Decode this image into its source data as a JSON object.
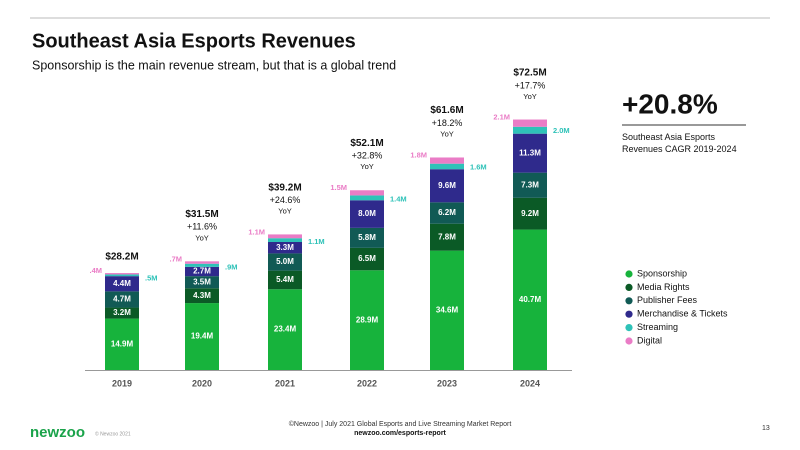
{
  "chart_data": {
    "type": "stacked_bar",
    "title": "Southeast Asia Esports Revenues",
    "subtitle": "Sponsorship is the main revenue stream, but that is a global trend",
    "categories": [
      "2019",
      "2020",
      "2021",
      "2022",
      "2023",
      "2024"
    ],
    "series": [
      {
        "name": "Sponsorship",
        "color": "#17b33c",
        "values": [
          14.9,
          19.4,
          23.4,
          28.9,
          34.6,
          40.7
        ],
        "value_labels": [
          "14.9M",
          "19.4M",
          "23.4M",
          "28.9M",
          "34.6M",
          "40.7M"
        ]
      },
      {
        "name": "Media Rights",
        "color": "#0b5a26",
        "values": [
          3.2,
          4.3,
          5.4,
          6.5,
          7.8,
          9.2
        ],
        "value_labels": [
          "3.2M",
          "4.3M",
          "5.4M",
          "6.5M",
          "7.8M",
          "9.2M"
        ]
      },
      {
        "name": "Publisher Fees",
        "color": "#115a55",
        "values": [
          4.7,
          3.5,
          5.0,
          5.8,
          6.2,
          7.3
        ],
        "value_labels": [
          "4.7M",
          "3.5M",
          "5.0M",
          "5.8M",
          "6.2M",
          "7.3M"
        ]
      },
      {
        "name": "Merchandise & Tickets",
        "color": "#2f2a8c",
        "values": [
          4.4,
          2.7,
          3.3,
          8.0,
          9.6,
          11.3
        ],
        "value_labels": [
          "4.4M",
          "2.7M",
          "3.3M",
          "8.0M",
          "9.6M",
          "11.3M"
        ]
      },
      {
        "name": "Streaming",
        "color": "#2ec2b8",
        "values": [
          0.5,
          0.9,
          1.1,
          1.4,
          1.6,
          2.0
        ],
        "value_labels": [
          ".5M",
          ".9M",
          "1.1M",
          "1.4M",
          "1.6M",
          "2.0M"
        ]
      },
      {
        "name": "Digital",
        "color": "#ea7cc6",
        "values": [
          0.4,
          0.7,
          1.1,
          1.5,
          1.8,
          2.1
        ],
        "value_labels": [
          ".4M",
          ".7M",
          "1.1M",
          "1.5M",
          "1.8M",
          "2.1M"
        ]
      }
    ],
    "totals": {
      "values": [
        28.2,
        31.5,
        39.2,
        52.1,
        61.6,
        72.5
      ],
      "value_labels": [
        "$28.2M",
        "$31.5M",
        "$39.2M",
        "$52.1M",
        "$61.6M",
        "$72.5M"
      ]
    },
    "growth": {
      "values": [
        null,
        11.6,
        24.6,
        32.8,
        18.2,
        17.7
      ],
      "value_labels": [
        null,
        "+11.6%",
        "+24.6%",
        "+32.8%",
        "+18.2%",
        "+17.7%"
      ]
    },
    "growth_unit": "YoY",
    "cagr": "+20.8%",
    "cagr_description": "Southeast Asia Esports Revenues CAGR 2019-2024"
  },
  "footer": {
    "logo": "newzoo",
    "copyright": "© Newzoo 2021",
    "source": "©Newzoo | July 2021 Global Esports and Live Streaming Market Report",
    "url": "newzoo.com/esports-report",
    "page": "13"
  }
}
